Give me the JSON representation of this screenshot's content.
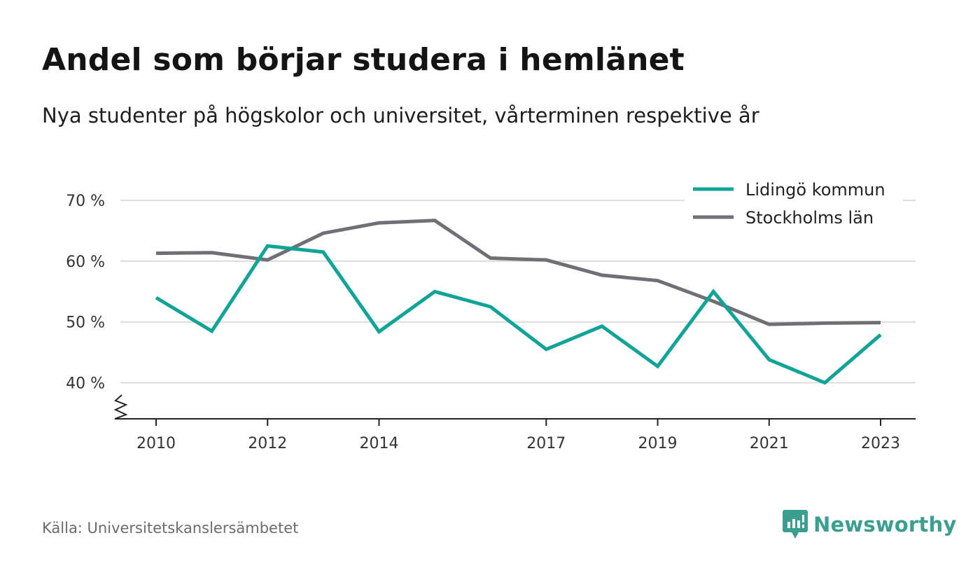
{
  "title": "Andel som börjar studera i hemlänet",
  "subtitle": "Nya studenter på högskolor och universitet, vårterminen respektive år",
  "source": "Källa: Universitetskanslersämbetet",
  "brand": {
    "name": "Newsworthy",
    "icon": "newsworthy-logo-icon",
    "color": "#3b9e8f"
  },
  "chart_data": {
    "type": "line",
    "x": [
      2010,
      2011,
      2012,
      2013,
      2014,
      2015,
      2016,
      2017,
      2018,
      2019,
      2020,
      2021,
      2022,
      2023
    ],
    "x_tick_labels": [
      "2010",
      "2012",
      "2014",
      "2017",
      "2019",
      "2021",
      "2023"
    ],
    "y_ticks": [
      40,
      50,
      60,
      70
    ],
    "y_tick_labels": [
      "40 %",
      "50 %",
      "60 %",
      "70 %"
    ],
    "ylim": [
      34,
      73
    ],
    "axis_break": true,
    "grid": true,
    "legend_position": "top-right",
    "series": [
      {
        "name": "Lidingö kommun",
        "color": "#0fa496",
        "values": [
          54.0,
          48.5,
          62.5,
          61.5,
          48.4,
          55.0,
          52.5,
          45.5,
          49.3,
          42.7,
          55.0,
          43.8,
          40.0,
          47.9
        ]
      },
      {
        "name": "Stockholms län",
        "color": "#6f6f75",
        "values": [
          61.3,
          61.4,
          60.2,
          64.6,
          66.3,
          66.7,
          60.5,
          60.2,
          57.7,
          56.8,
          53.4,
          49.6,
          49.8,
          49.9
        ]
      }
    ]
  }
}
